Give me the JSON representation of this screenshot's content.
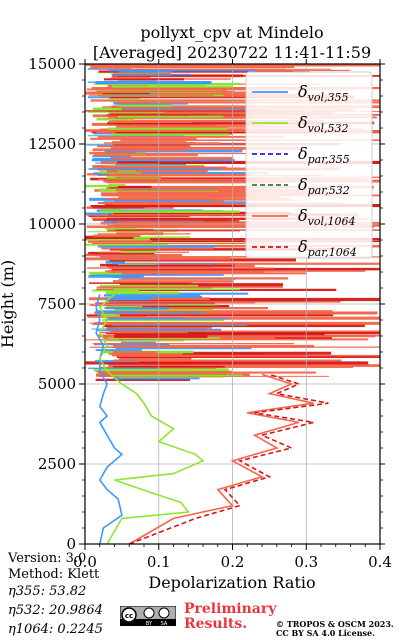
{
  "chart_data": {
    "type": "line",
    "title_line1": "pollyxt_cpv at Mindelo",
    "title_line2": "[Averaged] 20230722 11:41-11:59",
    "xlabel": "Depolarization Ratio",
    "ylabel": "Height (m)",
    "xlim": [
      0.0,
      0.4
    ],
    "ylim": [
      0,
      15000
    ],
    "xticks": [
      "0.0",
      "0.1",
      "0.2",
      "0.3",
      "0.4"
    ],
    "yticks": [
      "0",
      "2500",
      "5000",
      "7500",
      "10000",
      "12500",
      "15000"
    ],
    "grid": true,
    "legend_position": "top-right",
    "series": [
      {
        "name": "δvol,355",
        "label_base": "δ",
        "label_sub": "vol,355",
        "color": "#3c99ff",
        "dash": "solid",
        "x": [
          0.02,
          0.025,
          0.05,
          0.045,
          0.03,
          0.02,
          0.03,
          0.05,
          0.04,
          0.03,
          0.02,
          0.03,
          0.02,
          0.025,
          0.03,
          0.02,
          0.02,
          0.025,
          0.015,
          0.02,
          0.015,
          0.02
        ],
        "y": [
          0,
          500,
          900,
          1400,
          1700,
          2000,
          2400,
          2800,
          3000,
          3400,
          3800,
          4000,
          4300,
          4700,
          5000,
          5400,
          5800,
          6200,
          6600,
          7000,
          7400,
          7800
        ]
      },
      {
        "name": "δvol,532",
        "label_base": "δ",
        "label_sub": "vol,532",
        "color": "#8ce62b",
        "dash": "solid",
        "x": [
          0.03,
          0.05,
          0.14,
          0.13,
          0.09,
          0.04,
          0.12,
          0.16,
          0.15,
          0.1,
          0.12,
          0.09,
          0.08,
          0.07,
          0.05,
          0.03,
          0.02,
          0.03,
          0.02,
          0.03,
          0.02,
          0.04
        ],
        "y": [
          0,
          800,
          1000,
          1300,
          1600,
          2000,
          2200,
          2600,
          2800,
          3200,
          3600,
          4000,
          4400,
          4700,
          5000,
          5400,
          5800,
          6200,
          6600,
          7000,
          7400,
          7800
        ]
      },
      {
        "name": "δpar,355",
        "label_base": "δ",
        "label_sub": "par,355",
        "color": "#2222dd",
        "dash": "dashed",
        "x": [],
        "y": []
      },
      {
        "name": "δpar,532",
        "label_base": "δ",
        "label_sub": "par,532",
        "color": "#1f8a2e",
        "dash": "dashed",
        "x": [],
        "y": []
      },
      {
        "name": "δvol,1064",
        "label_base": "δ",
        "label_sub": "vol,1064",
        "color": "#f4664a",
        "dash": "solid",
        "x": [
          0.06,
          0.12,
          0.2,
          0.18,
          0.24,
          0.2,
          0.26,
          0.23,
          0.29,
          0.22,
          0.31,
          0.25,
          0.28,
          0.24
        ],
        "y": [
          0,
          800,
          1200,
          1700,
          2100,
          2600,
          3000,
          3400,
          3800,
          4100,
          4400,
          4700,
          5000,
          5300
        ]
      },
      {
        "name": "δpar,1064",
        "label_base": "δ",
        "label_sub": "par,1064",
        "color": "#d41818",
        "dash": "dashed",
        "x": [
          0.06,
          0.15,
          0.21,
          0.19,
          0.25,
          0.21,
          0.28,
          0.24,
          0.31,
          0.23,
          0.33,
          0.26,
          0.29,
          0.25
        ],
        "y": [
          0,
          800,
          1200,
          1700,
          2100,
          2600,
          3000,
          3400,
          3800,
          4100,
          4400,
          4700,
          5000,
          5300
        ]
      }
    ]
  },
  "meta": {
    "version": "Version: 3.0",
    "method": "Method: Klett",
    "eta355": "η355:  53.82",
    "eta532": "η532: 20.9864",
    "eta1064": "η1064: 0.2245"
  },
  "footer": {
    "preliminary_line1": "Preliminary",
    "preliminary_line2": "Results.",
    "copyright_line1": "© TROPOS & OSCM 2023.",
    "copyright_line2": "CC BY SA 4.0 License.",
    "cc_text": "cc",
    "by_text": "BY",
    "sa_text": "SA"
  }
}
